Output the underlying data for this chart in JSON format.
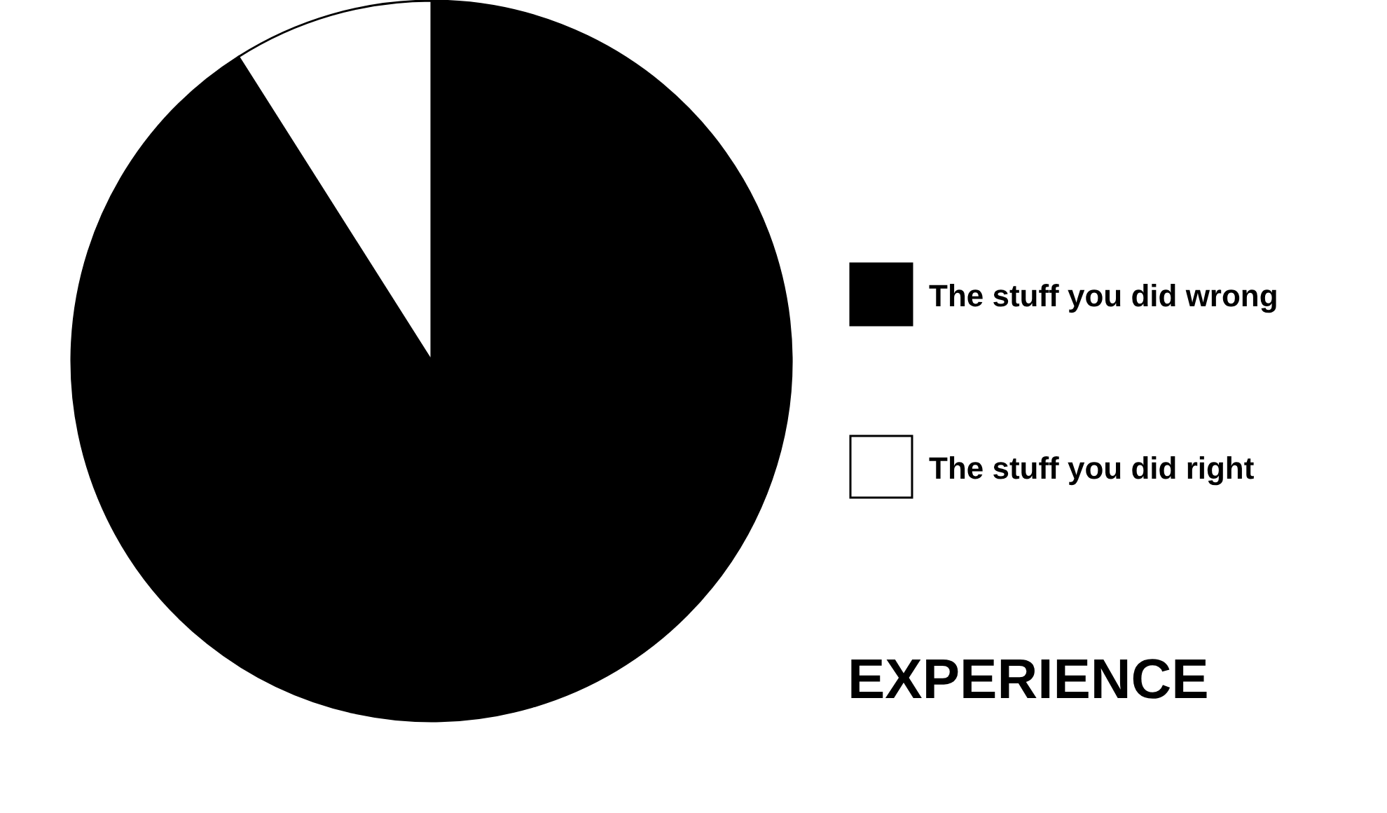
{
  "chart_data": {
    "type": "pie",
    "title": "EXPERIENCE",
    "categories": [
      "The stuff you did wrong",
      "The stuff you did right"
    ],
    "values": [
      91,
      9
    ],
    "colors": [
      "#000000",
      "#ffffff"
    ],
    "legend": "right"
  }
}
